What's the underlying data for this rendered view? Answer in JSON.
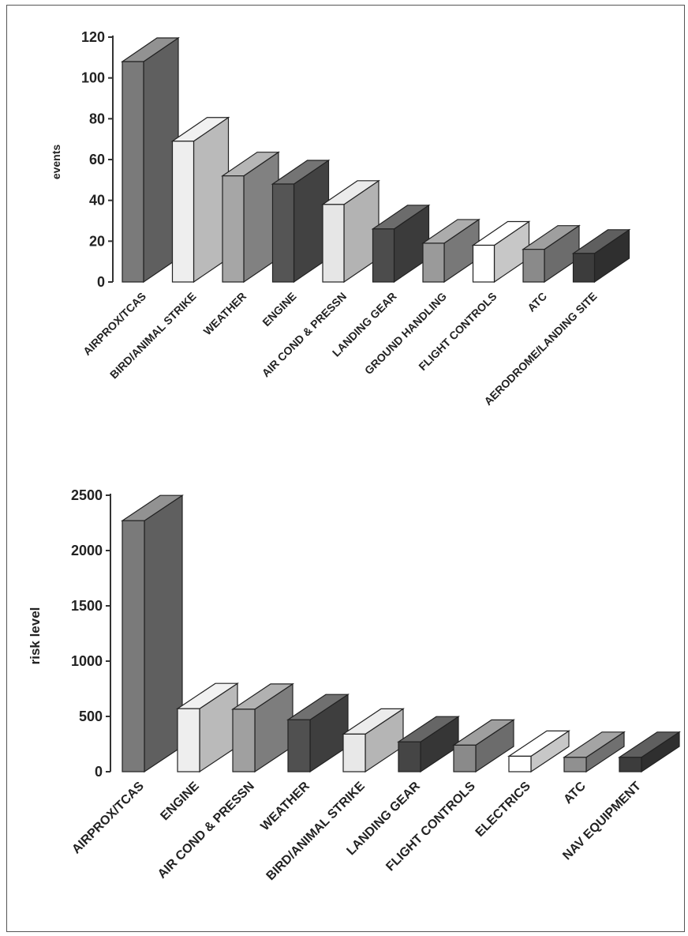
{
  "chart_data": [
    {
      "type": "bar",
      "ylabel": "events",
      "ylim": [
        0,
        120
      ],
      "yticks": [
        0,
        20,
        40,
        60,
        80,
        100,
        120
      ],
      "categories": [
        "AIRPROX/TCAS",
        "BIRD/ANIMAL STRIKE",
        "WEATHER",
        "ENGINE",
        "AIR COND & PRESSN",
        "LANDING GEAR",
        "GROUND HANDLING",
        "FLIGHT CONTROLS",
        "ATC",
        "AERODROME/LANDING SITE"
      ],
      "values": [
        108,
        69,
        52,
        48,
        38,
        26,
        19,
        18,
        16,
        14
      ],
      "colors": [
        "#7a7a7a",
        "#eeeeee",
        "#a6a6a6",
        "#555555",
        "#e6e6e6",
        "#4c4c4c",
        "#9a9a9a",
        "#ffffff",
        "#8a8a8a",
        "#3c3c3c"
      ]
    },
    {
      "type": "bar",
      "ylabel": "risk level",
      "ylim": [
        0,
        2500
      ],
      "yticks": [
        0,
        500,
        1000,
        1500,
        2000,
        2500
      ],
      "categories": [
        "AIRPROX/TCAS",
        "ENGINE",
        "AIR COND & PRESSN",
        "WEATHER",
        "BIRD/ANIMAL STRIKE",
        "LANDING GEAR",
        "FLIGHT CONTROLS",
        "ELECTRICS",
        "ATC",
        "NAV EQUIPMENT"
      ],
      "values": [
        2270,
        570,
        565,
        470,
        340,
        270,
        240,
        140,
        130,
        130
      ],
      "colors": [
        "#7a7a7a",
        "#eeeeee",
        "#a0a0a0",
        "#505050",
        "#e8e8e8",
        "#454545",
        "#8a8a8a",
        "#ffffff",
        "#909090",
        "#3c3c3c"
      ]
    }
  ]
}
